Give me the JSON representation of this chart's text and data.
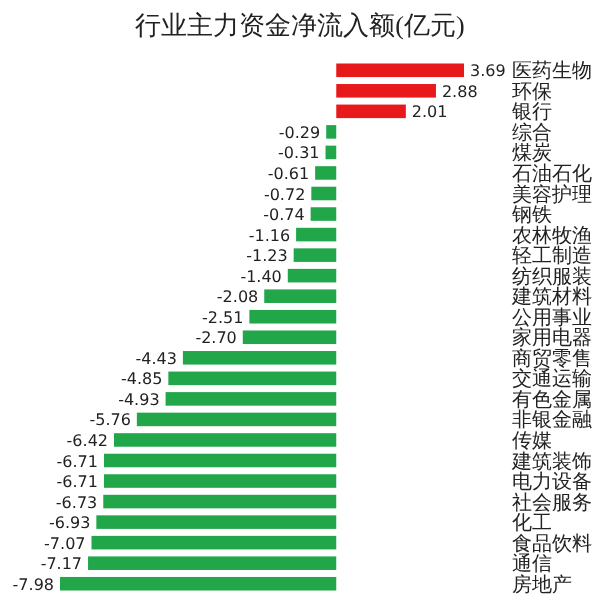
{
  "chart_data": {
    "type": "bar",
    "orientation": "horizontal",
    "title": "行业主力资金净流入额(亿元)",
    "value_labels": [
      "3.69",
      "2.88",
      "2.01",
      "-0.29",
      "-0.31",
      "-0.61",
      "-0.72",
      "-0.74",
      "-1.16",
      "-1.23",
      "-1.40",
      "-2.08",
      "-2.51",
      "-2.70",
      "-4.43",
      "-4.85",
      "-4.93",
      "-5.76",
      "-6.42",
      "-6.71",
      "-6.71",
      "-6.73",
      "-6.93",
      "-7.07",
      "-7.17",
      "-7.98"
    ],
    "categories": [
      "医药生物",
      "环保",
      "银行",
      "综合",
      "煤炭",
      "石油石化",
      "美容护理",
      "钢铁",
      "农林牧渔",
      "轻工制造",
      "纺织服装",
      "建筑材料",
      "公用事业",
      "家用电器",
      "商贸零售",
      "交通运输",
      "有色金属",
      "非银金融",
      "传媒",
      "建筑装饰",
      "电力设备",
      "社会服务",
      "化工",
      "食品饮料",
      "通信",
      "房地产"
    ],
    "values": [
      3.69,
      2.88,
      2.01,
      -0.29,
      -0.31,
      -0.61,
      -0.72,
      -0.74,
      -1.16,
      -1.23,
      -1.4,
      -2.08,
      -2.51,
      -2.7,
      -4.43,
      -4.85,
      -4.93,
      -5.76,
      -6.42,
      -6.71,
      -6.71,
      -6.73,
      -6.93,
      -7.07,
      -7.17,
      -7.98
    ],
    "colors": [
      "#e8191b",
      "#e8191b",
      "#e8191b",
      "#21a64a",
      "#21a64a",
      "#21a64a",
      "#21a64a",
      "#21a64a",
      "#21a64a",
      "#21a64a",
      "#21a64a",
      "#21a64a",
      "#21a64a",
      "#21a64a",
      "#21a64a",
      "#21a64a",
      "#21a64a",
      "#21a64a",
      "#21a64a",
      "#21a64a",
      "#21a64a",
      "#21a64a",
      "#21a64a",
      "#21a64a",
      "#21a64a",
      "#21a64a"
    ]
  }
}
